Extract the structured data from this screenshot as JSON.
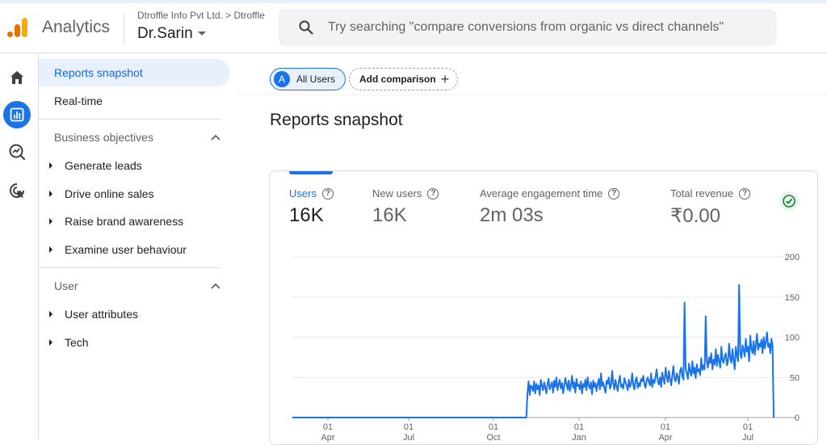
{
  "header": {
    "app_name": "Analytics",
    "breadcrumb": "Dtroffle Info Pvt Ltd. > Dtroffle",
    "property": "Dr.Sarin",
    "search_placeholder": "Try searching \"compare conversions from organic vs direct channels\""
  },
  "rail": {
    "items": [
      {
        "icon": "home-icon",
        "active": false
      },
      {
        "icon": "reports-icon",
        "active": true
      },
      {
        "icon": "explore-icon",
        "active": false
      },
      {
        "icon": "advertising-icon",
        "active": false
      }
    ],
    "accent": "#1a73e8"
  },
  "nav": {
    "reports_snapshot": "Reports snapshot",
    "realtime": "Real-time",
    "business_objectives": {
      "title": "Business objectives",
      "items": [
        "Generate leads",
        "Drive online sales",
        "Raise brand awareness",
        "Examine user behaviour"
      ]
    },
    "user": {
      "title": "User",
      "items": [
        "User attributes",
        "Tech"
      ]
    }
  },
  "main": {
    "comparison_chip": {
      "avatar": "A",
      "label": "All Users"
    },
    "add_comparison": "Add comparison",
    "page_title": "Reports snapshot",
    "metrics": [
      {
        "label": "Users",
        "value": "16K",
        "active": true
      },
      {
        "label": "New users",
        "value": "16K",
        "active": false
      },
      {
        "label": "Average engagement time",
        "value": "2m 03s",
        "active": false
      },
      {
        "label": "Total revenue",
        "value": "₹0.00",
        "active": false
      }
    ]
  },
  "chart_data": {
    "type": "line",
    "series": [
      {
        "color": "#1a73e8",
        "values": [
          0,
          0,
          0,
          0,
          0,
          0,
          0,
          0,
          0,
          0,
          0,
          0,
          0,
          0,
          0,
          0,
          0,
          0,
          0,
          0,
          0,
          0,
          0,
          0,
          0,
          0,
          0,
          0,
          0,
          0,
          0,
          0,
          0,
          0,
          0,
          0,
          0,
          0,
          0,
          0,
          0,
          0,
          0,
          0,
          0,
          0,
          0,
          0,
          0,
          0,
          0,
          0,
          0,
          0,
          0,
          0,
          0,
          0,
          0,
          0,
          0,
          0,
          0,
          0,
          0,
          0,
          0,
          0,
          0,
          0,
          0,
          0,
          0,
          0,
          0,
          0,
          0,
          0,
          0,
          0,
          0,
          0,
          0,
          0,
          0,
          0,
          0,
          0,
          0,
          0,
          0,
          0,
          0,
          0,
          0,
          0,
          0,
          0,
          0,
          0,
          0,
          0,
          0,
          0,
          0,
          0,
          0,
          0,
          0,
          0,
          0,
          0,
          0,
          0,
          0,
          0,
          0,
          0,
          0,
          0,
          0,
          0,
          0,
          0,
          0,
          0,
          0,
          0,
          0,
          0,
          0,
          0,
          0,
          0,
          0,
          0,
          0,
          0,
          0,
          0,
          0,
          0,
          0,
          0,
          0,
          0,
          0,
          0,
          0,
          0,
          0,
          0,
          0,
          0,
          0,
          0,
          0,
          0,
          0,
          0,
          0,
          0,
          0,
          0,
          0,
          0,
          0,
          0,
          0,
          0,
          0,
          0,
          0,
          0,
          0,
          0,
          0,
          0,
          0,
          0,
          0,
          0,
          0,
          0,
          0,
          0,
          0,
          0,
          0,
          0,
          0,
          0,
          0,
          0,
          0,
          0,
          0,
          0,
          0,
          0,
          0,
          0,
          0,
          0,
          0,
          0,
          0,
          0,
          0,
          0,
          0,
          30,
          45,
          28,
          40,
          38,
          33,
          45,
          30,
          42,
          35,
          40,
          28,
          47,
          40,
          34,
          44,
          37,
          30,
          42,
          48,
          35,
          39,
          44,
          31,
          46,
          38,
          50,
          34,
          41,
          47,
          36,
          43,
          30,
          39,
          49,
          42,
          35,
          46,
          33,
          40,
          52,
          37,
          44,
          31,
          48,
          39,
          41,
          35,
          45,
          30,
          42,
          38,
          47,
          34,
          50,
          40,
          36,
          44,
          29,
          46,
          38,
          43,
          33,
          41,
          48,
          35,
          55,
          39,
          44,
          37,
          31,
          46,
          42,
          50,
          36,
          40,
          58,
          43,
          35,
          47,
          39,
          33,
          45,
          52,
          38,
          41,
          36,
          49,
          44,
          40,
          34,
          47,
          38,
          42,
          55,
          40,
          35,
          46,
          50,
          37,
          43,
          39,
          48,
          45,
          52,
          41,
          37,
          46,
          50,
          44,
          40,
          55,
          38,
          47,
          43,
          52,
          60,
          45,
          41,
          50,
          38,
          56,
          48,
          42,
          62,
          51,
          44,
          58,
          47,
          40,
          53,
          64,
          48,
          45,
          55,
          50,
          42,
          58,
          62,
          52,
          47,
          143,
          60,
          55,
          48,
          67,
          58,
          52,
          70,
          55,
          62,
          49,
          66,
          57,
          60,
          53,
          74,
          59,
          65,
          60,
          126,
          70,
          62,
          75,
          68,
          80,
          60,
          72,
          66,
          85,
          64,
          78,
          70,
          62,
          88,
          72,
          68,
          76,
          80,
          65,
          70,
          92,
          74,
          68,
          85,
          72,
          60,
          88,
          78,
          70,
          165,
          80,
          74,
          90,
          84,
          76,
          98,
          82,
          88,
          70,
          102,
          86,
          80,
          95,
          78,
          90,
          104,
          84,
          92,
          88,
          97,
          80,
          100,
          86,
          94,
          106,
          88,
          92,
          80,
          98,
          90,
          0
        ]
      }
    ],
    "x_ticks": [
      {
        "top": "01",
        "bottom": "Apr"
      },
      {
        "top": "01",
        "bottom": "Jul"
      },
      {
        "top": "01",
        "bottom": "Oct"
      },
      {
        "top": "01",
        "bottom": "Jan"
      },
      {
        "top": "01",
        "bottom": "Apr"
      },
      {
        "top": "01",
        "bottom": "Jul"
      }
    ],
    "y_ticks": [
      200,
      150,
      100,
      50,
      0
    ],
    "ylim": [
      0,
      200
    ],
    "grid": true
  }
}
